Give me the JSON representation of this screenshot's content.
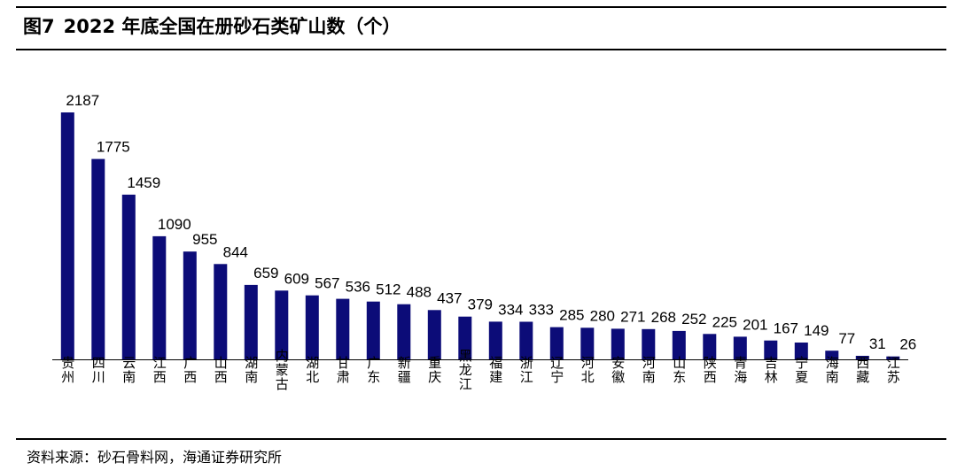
{
  "header": {
    "figure_number": "图7",
    "title": "2022 年底全国在册砂石类矿山数（个）"
  },
  "footer": {
    "source": "资料来源：砂石骨料网，海通证券研究所"
  },
  "colors": {
    "bar": "#0c0c78",
    "axis": "#000000",
    "rule": "#000000"
  },
  "chart_data": {
    "type": "bar",
    "title": "2022 年底全国在册砂石类矿山数（个）",
    "xlabel": "",
    "ylabel": "",
    "ylim": [
      0,
      2187
    ],
    "grid": false,
    "categories": [
      "贵州",
      "四川",
      "云南",
      "江西",
      "广西",
      "山西",
      "湖南",
      "内蒙古",
      "湖北",
      "甘肃",
      "广东",
      "新疆",
      "重庆",
      "黑龙江",
      "福建",
      "浙江",
      "辽宁",
      "河北",
      "安徽",
      "河南",
      "山东",
      "陕西",
      "青海",
      "吉林",
      "宁夏",
      "海南",
      "西藏",
      "江苏"
    ],
    "values": [
      2187,
      1775,
      1459,
      1090,
      955,
      844,
      659,
      609,
      567,
      536,
      512,
      488,
      437,
      379,
      334,
      333,
      285,
      280,
      271,
      268,
      252,
      225,
      201,
      167,
      149,
      77,
      31,
      26
    ],
    "value_labels": [
      "2187",
      "1775",
      "1459",
      "1090",
      "955",
      "844",
      "659",
      "609",
      "567",
      "536",
      "512",
      "488",
      "437",
      "379",
      "334",
      "333",
      "285",
      "280",
      "271",
      "268",
      "252",
      "225",
      "201",
      "167",
      "149",
      "77",
      "31",
      "26"
    ]
  }
}
